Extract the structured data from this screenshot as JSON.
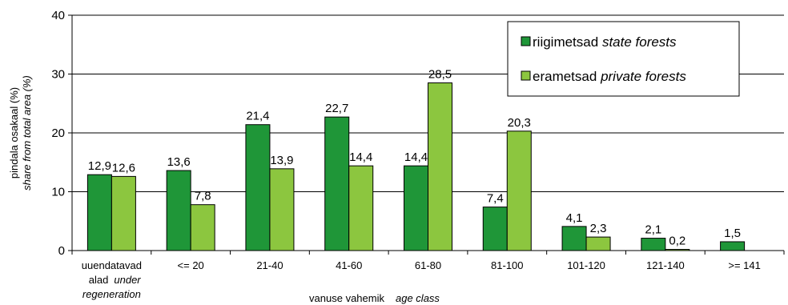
{
  "chart_data": {
    "type": "bar",
    "categories": [
      [
        "uuendatavad",
        "alad",
        "under",
        "regeneration"
      ],
      [
        "<= 20"
      ],
      [
        "21-40"
      ],
      [
        "41-60"
      ],
      [
        "61-80"
      ],
      [
        "81-100"
      ],
      [
        "101-120"
      ],
      [
        "121-140"
      ],
      [
        ">= 141"
      ]
    ],
    "series": [
      {
        "name": "riigimetsad",
        "name_en": "state forests",
        "color": "#1f9638",
        "values": [
          12.9,
          13.6,
          21.4,
          22.7,
          14.4,
          7.4,
          4.1,
          2.1,
          1.5
        ],
        "labels": [
          "12,9",
          "13,6",
          "21,4",
          "22,7",
          "14,4",
          "7,4",
          "4,1",
          "2,1",
          "1,5"
        ]
      },
      {
        "name": "erametsad",
        "name_en": "private forests",
        "color": "#8cc63f",
        "values": [
          12.6,
          7.8,
          13.9,
          14.4,
          28.5,
          20.3,
          2.3,
          0.2,
          null
        ],
        "labels": [
          "12,6",
          "7,8",
          "13,9",
          "14,4",
          "28,5",
          "20,3",
          "2,3",
          "0,2",
          ""
        ]
      }
    ],
    "ylim": [
      0,
      40
    ],
    "yticks": [
      0,
      10,
      20,
      30,
      40
    ],
    "ylabel": "pindala osakaal (%)",
    "ylabel_en": "share from total area (%)",
    "xlabel": "vanuse vahemik",
    "xlabel_en": "age class",
    "grid": true,
    "legend_position": "top-right"
  }
}
